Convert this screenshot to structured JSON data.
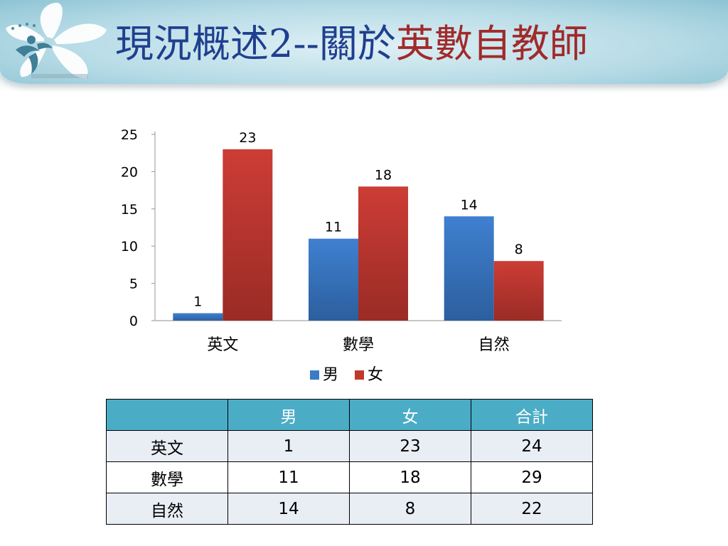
{
  "slide": {
    "title_part1": "現況概述2--關於",
    "title_part2": "英數自教師"
  },
  "colors": {
    "male": "#3c7bc7",
    "female": "#c0392b",
    "table_header": "#4bacc6",
    "title_blue": "#1f3f8f",
    "title_red": "#a12a2a"
  },
  "chart_data": {
    "type": "bar",
    "categories": [
      "英文",
      "數學",
      "自然"
    ],
    "series": [
      {
        "name": "男",
        "values": [
          1,
          11,
          14
        ]
      },
      {
        "name": "女",
        "values": [
          23,
          18,
          8
        ]
      }
    ],
    "ylim": [
      0,
      25
    ],
    "yticks": [
      0,
      5,
      10,
      15,
      20,
      25
    ],
    "grid": false,
    "legend": "bottom",
    "data_labels": true
  },
  "table": {
    "headers": [
      "",
      "男",
      "女",
      "合計"
    ],
    "rows": [
      [
        "英文",
        "1",
        "23",
        "24"
      ],
      [
        "數學",
        "11",
        "18",
        "29"
      ],
      [
        "自然",
        "14",
        "8",
        "22"
      ]
    ]
  }
}
